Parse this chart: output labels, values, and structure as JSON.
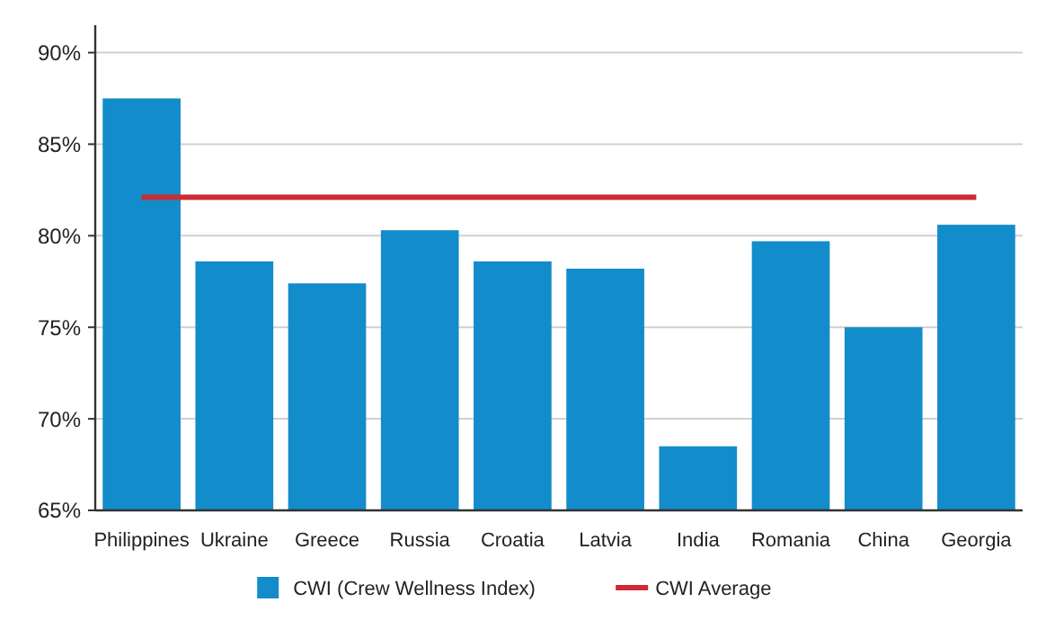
{
  "chart_data": {
    "type": "bar",
    "categories": [
      "Philippines",
      "Ukraine",
      "Greece",
      "Russia",
      "Croatia",
      "Latvia",
      "India",
      "Romania",
      "China",
      "Georgia"
    ],
    "series": [
      {
        "name": "CWI (Crew Wellness Index)",
        "color": "#138ccb",
        "values": [
          87.5,
          78.6,
          77.4,
          80.3,
          78.6,
          78.2,
          68.5,
          79.7,
          75.0,
          80.6
        ]
      },
      {
        "name": "CWI Average",
        "type": "line",
        "color": "#cc2b36",
        "values": [
          82.1,
          82.1,
          82.1,
          82.1,
          82.1,
          82.1,
          82.1,
          82.1,
          82.1,
          82.1
        ]
      }
    ],
    "ylim": [
      65,
      91.5
    ],
    "yticks": [
      {
        "value": 65,
        "label": "65%"
      },
      {
        "value": 70,
        "label": "70%"
      },
      {
        "value": 75,
        "label": "75%"
      },
      {
        "value": 80,
        "label": "80%"
      },
      {
        "value": 85,
        "label": "85%"
      },
      {
        "value": 90,
        "label": "90%"
      }
    ],
    "grid": "y",
    "legend": "bottom"
  }
}
